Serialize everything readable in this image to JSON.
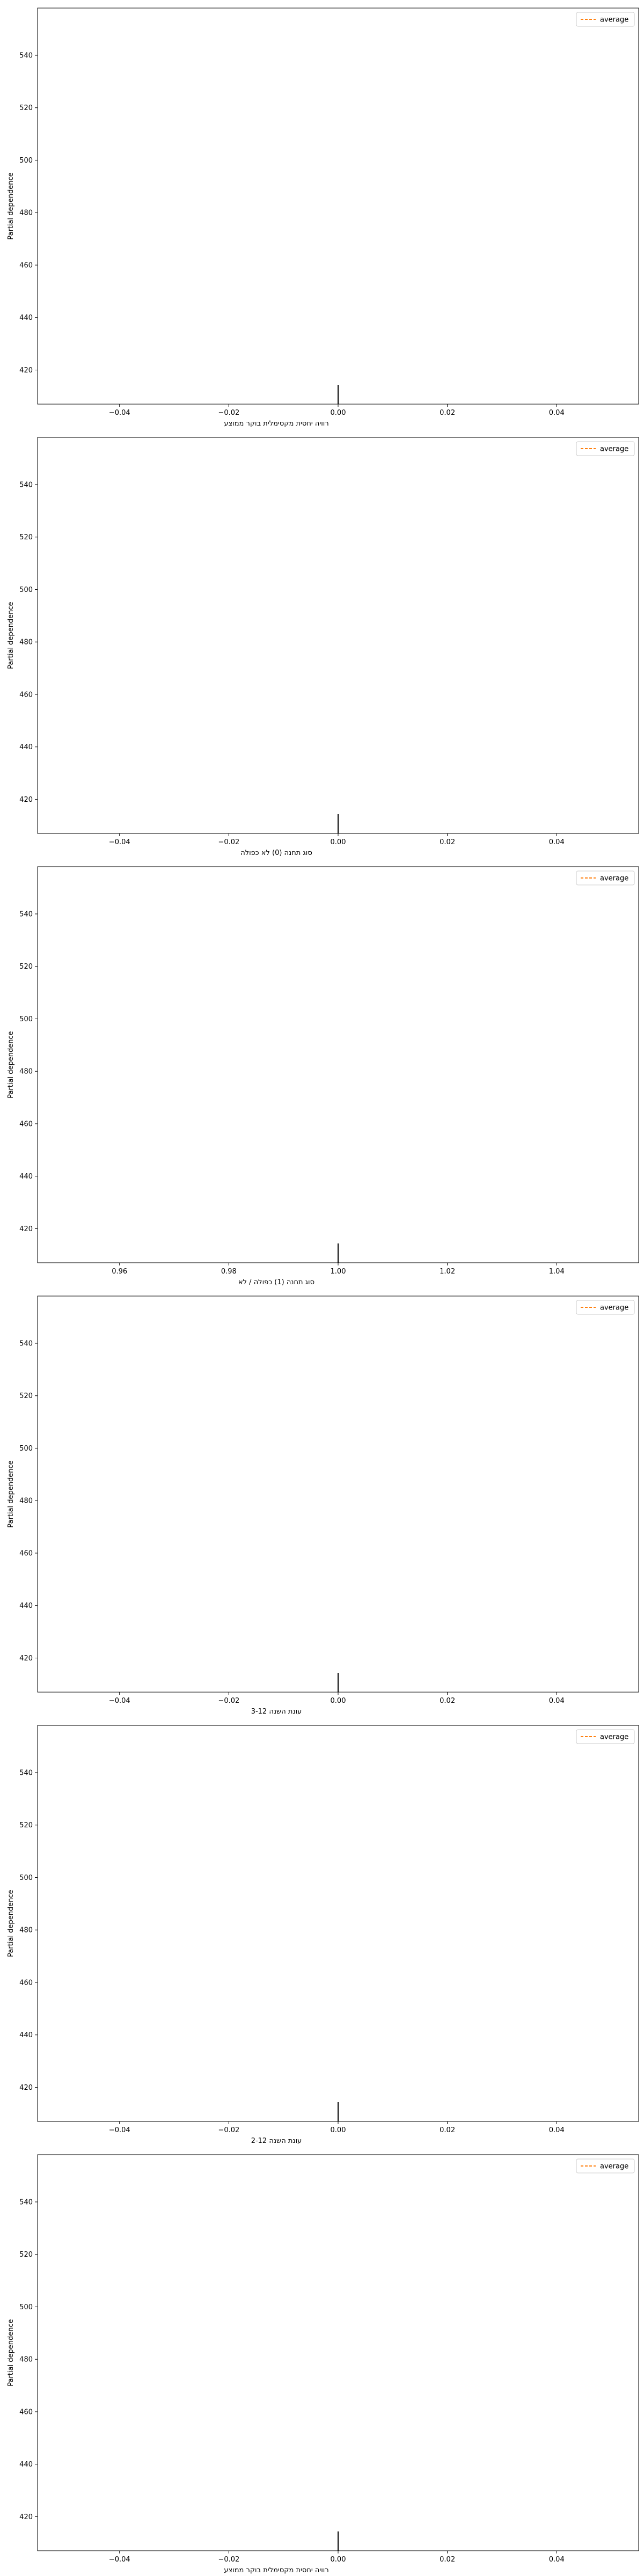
{
  "figure": {
    "background": "#ffffff"
  },
  "legend": {
    "label": "average",
    "color": "#ff7f0e",
    "placement": "upper right"
  },
  "colors": {
    "axes": "#000000",
    "rug": "#000000"
  },
  "chart_data": [
    {
      "type": "line",
      "ylabel": "Partial dependence",
      "xlabel": "רוויה יחסית מקסימלית בוקר ממוצע",
      "xlim": [
        -0.055,
        0.055
      ],
      "ylim": [
        407,
        558
      ],
      "xticks": [
        -0.04,
        -0.02,
        0.0,
        0.02,
        0.04
      ],
      "xtick_labels": [
        "−0.04",
        "−0.02",
        "0.00",
        "0.02",
        "0.04"
      ],
      "yticks": [
        420,
        440,
        460,
        480,
        500,
        520,
        540
      ],
      "ytick_labels": [
        "420",
        "440",
        "460",
        "480",
        "500",
        "520",
        "540"
      ],
      "rug_x": [
        0.0
      ],
      "series": [
        {
          "name": "average",
          "x": [],
          "y": []
        }
      ]
    },
    {
      "type": "line",
      "ylabel": "Partial dependence",
      "xlabel": "סוג תחנה (0) לא כפולה",
      "xlim": [
        -0.055,
        0.055
      ],
      "ylim": [
        407,
        558
      ],
      "xticks": [
        -0.04,
        -0.02,
        0.0,
        0.02,
        0.04
      ],
      "xtick_labels": [
        "−0.04",
        "−0.02",
        "0.00",
        "0.02",
        "0.04"
      ],
      "yticks": [
        420,
        440,
        460,
        480,
        500,
        520,
        540
      ],
      "ytick_labels": [
        "420",
        "440",
        "460",
        "480",
        "500",
        "520",
        "540"
      ],
      "rug_x": [
        0.0
      ],
      "series": [
        {
          "name": "average",
          "x": [],
          "y": []
        }
      ]
    },
    {
      "type": "line",
      "ylabel": "Partial dependence",
      "xlabel": "סוג תחנה (1) כפולה / לא",
      "xlim": [
        0.945,
        1.055
      ],
      "ylim": [
        407,
        558
      ],
      "xticks": [
        0.96,
        0.98,
        1.0,
        1.02,
        1.04
      ],
      "xtick_labels": [
        "0.96",
        "0.98",
        "1.00",
        "1.02",
        "1.04"
      ],
      "yticks": [
        420,
        440,
        460,
        480,
        500,
        520,
        540
      ],
      "ytick_labels": [
        "420",
        "440",
        "460",
        "480",
        "500",
        "520",
        "540"
      ],
      "rug_x": [
        1.0
      ],
      "series": [
        {
          "name": "average",
          "x": [],
          "y": []
        }
      ]
    },
    {
      "type": "line",
      "ylabel": "Partial dependence",
      "xlabel": "עונת השנה 3-12",
      "xlim": [
        -0.055,
        0.055
      ],
      "ylim": [
        407,
        558
      ],
      "xticks": [
        -0.04,
        -0.02,
        0.0,
        0.02,
        0.04
      ],
      "xtick_labels": [
        "−0.04",
        "−0.02",
        "0.00",
        "0.02",
        "0.04"
      ],
      "yticks": [
        420,
        440,
        460,
        480,
        500,
        520,
        540
      ],
      "ytick_labels": [
        "420",
        "440",
        "460",
        "480",
        "500",
        "520",
        "540"
      ],
      "rug_x": [
        0.0
      ],
      "series": [
        {
          "name": "average",
          "x": [],
          "y": []
        }
      ]
    },
    {
      "type": "line",
      "ylabel": "Partial dependence",
      "xlabel": "עונת השנה 2-12",
      "xlim": [
        -0.055,
        0.055
      ],
      "ylim": [
        407,
        558
      ],
      "xticks": [
        -0.04,
        -0.02,
        0.0,
        0.02,
        0.04
      ],
      "xtick_labels": [
        "−0.04",
        "−0.02",
        "0.00",
        "0.02",
        "0.04"
      ],
      "yticks": [
        420,
        440,
        460,
        480,
        500,
        520,
        540
      ],
      "ytick_labels": [
        "420",
        "440",
        "460",
        "480",
        "500",
        "520",
        "540"
      ],
      "rug_x": [
        0.0
      ],
      "series": [
        {
          "name": "average",
          "x": [],
          "y": []
        }
      ]
    },
    {
      "type": "line",
      "ylabel": "Partial dependence",
      "xlabel": "רוויה יחסית מקסימלית בוקר ממוצע",
      "xlim": [
        -0.055,
        0.055
      ],
      "ylim": [
        407,
        558
      ],
      "xticks": [
        -0.04,
        -0.02,
        0.0,
        0.02,
        0.04
      ],
      "xtick_labels": [
        "−0.04",
        "−0.02",
        "0.00",
        "0.02",
        "0.04"
      ],
      "yticks": [
        420,
        440,
        460,
        480,
        500,
        520,
        540
      ],
      "ytick_labels": [
        "420",
        "440",
        "460",
        "480",
        "500",
        "520",
        "540"
      ],
      "rug_x": [
        0.0
      ],
      "series": [
        {
          "name": "average",
          "x": [],
          "y": []
        }
      ]
    }
  ]
}
